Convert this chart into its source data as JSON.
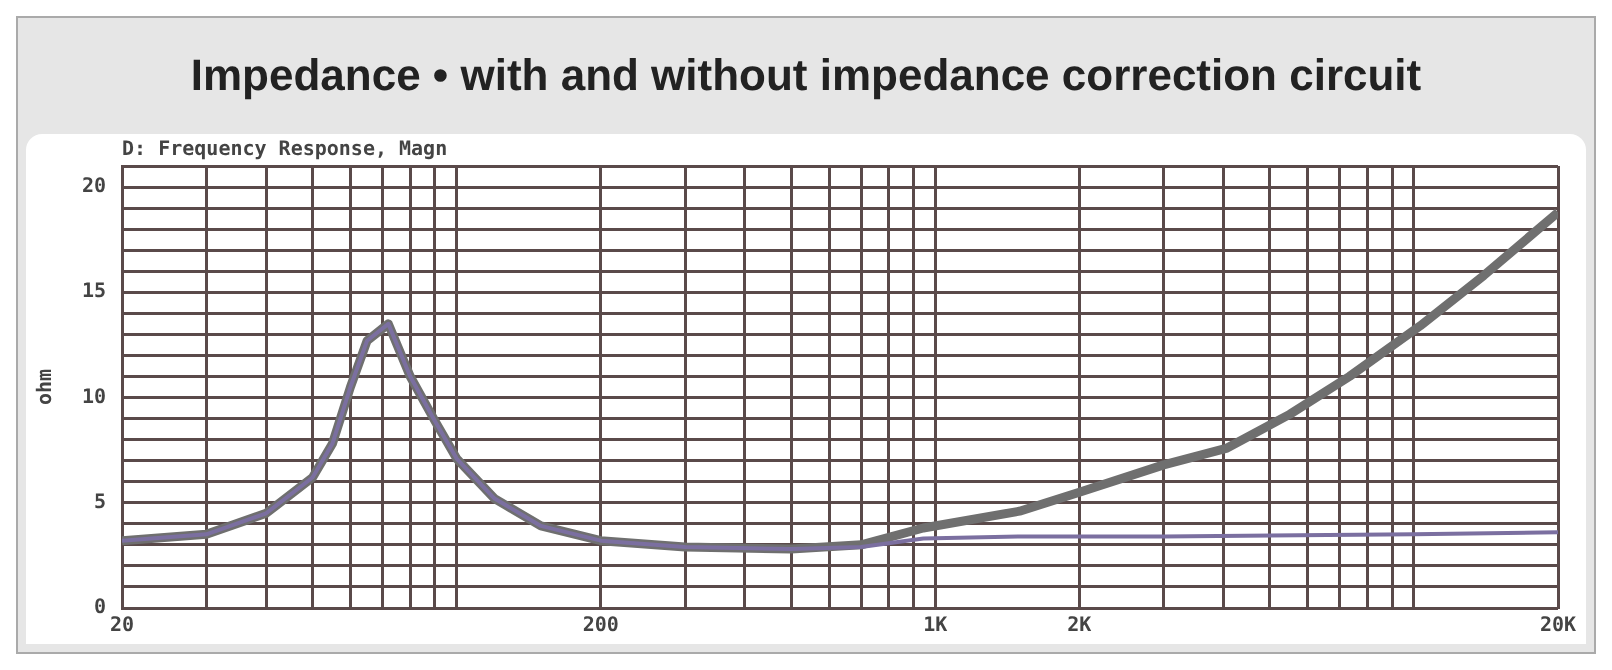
{
  "chart_data": {
    "type": "line",
    "title": "Impedance • with and without impedance correction circuit",
    "subtitle": "D: Frequency Response, Magn",
    "ylabel": "ohm",
    "log": "x",
    "grid": true,
    "legend": false,
    "marker": "none",
    "line_style": "solid",
    "xlim": [
      20,
      20000
    ],
    "xticks": [
      20,
      {
        "value": 30,
        "label": null
      },
      {
        "value": 40,
        "label": null
      },
      {
        "value": 50,
        "label": null
      },
      {
        "value": 60,
        "label": null
      },
      {
        "value": 70,
        "label": null
      },
      {
        "value": 80,
        "label": null
      },
      {
        "value": 90,
        "label": null
      },
      {
        "value": 100,
        "label": null
      },
      200,
      {
        "value": 300,
        "label": null
      },
      {
        "value": 400,
        "label": null
      },
      {
        "value": 500,
        "label": null
      },
      {
        "value": 600,
        "label": null
      },
      {
        "value": 700,
        "label": null
      },
      {
        "value": 800,
        "label": null
      },
      {
        "value": 900,
        "label": null
      },
      {
        "value": 1000,
        "label": "1K"
      },
      {
        "value": 2000,
        "label": "2K"
      },
      {
        "value": 3000,
        "label": null
      },
      {
        "value": 4000,
        "label": null
      },
      {
        "value": 5000,
        "label": null
      },
      {
        "value": 6000,
        "label": null
      },
      {
        "value": 7000,
        "label": null
      },
      {
        "value": 8000,
        "label": null
      },
      {
        "value": 9000,
        "label": null
      },
      {
        "value": 10000,
        "label": null
      },
      {
        "value": 20000,
        "label": "20K"
      }
    ],
    "ylim": [
      0,
      21
    ],
    "yticks": [
      0,
      {
        "value": 1,
        "label": null
      },
      {
        "value": 2,
        "label": null
      },
      {
        "value": 3,
        "label": null
      },
      {
        "value": 4,
        "label": null
      },
      5,
      {
        "value": 6,
        "label": null
      },
      {
        "value": 7,
        "label": null
      },
      {
        "value": 8,
        "label": null
      },
      {
        "value": 9,
        "label": null
      },
      10,
      {
        "value": 11,
        "label": null
      },
      {
        "value": 12,
        "label": null
      },
      {
        "value": 13,
        "label": null
      },
      {
        "value": 14,
        "label": null
      },
      15,
      {
        "value": 16,
        "label": null
      },
      {
        "value": 17,
        "label": null
      },
      {
        "value": 18,
        "label": null
      },
      {
        "value": 19,
        "label": null
      },
      20,
      {
        "value": 21,
        "label": null
      }
    ],
    "series": [
      {
        "color": "#6f6f6f",
        "x": [
          20,
          30,
          40,
          50,
          55,
          60,
          65,
          72,
          80,
          90,
          100,
          120,
          150,
          200,
          300,
          500,
          700,
          944,
          1500,
          2000,
          3000,
          4070,
          5500,
          7330,
          10300,
          14000,
          20000
        ],
        "values": [
          3.2,
          3.5,
          4.5,
          6.2,
          7.8,
          10.5,
          12.7,
          13.5,
          11,
          8.9,
          7.1,
          5.2,
          3.9,
          3.2,
          2.9,
          2.8,
          3,
          3.8,
          4.6,
          5.5,
          6.8,
          7.6,
          9.2,
          11,
          13.4,
          15.8,
          18.8
        ]
      },
      {
        "color": "#7b6fa0",
        "x": [
          20,
          30,
          40,
          50,
          55,
          60,
          65,
          72,
          80,
          90,
          100,
          120,
          150,
          200,
          300,
          500,
          700,
          944,
          1500,
          3000,
          10000,
          20000
        ],
        "values": [
          3.2,
          3.5,
          4.5,
          6.2,
          7.8,
          10.5,
          12.7,
          13.5,
          11,
          8.9,
          7.1,
          5.2,
          3.9,
          3.2,
          2.9,
          2.8,
          2.9,
          3.3,
          3.4,
          3.4,
          3.5,
          3.6
        ]
      }
    ]
  }
}
